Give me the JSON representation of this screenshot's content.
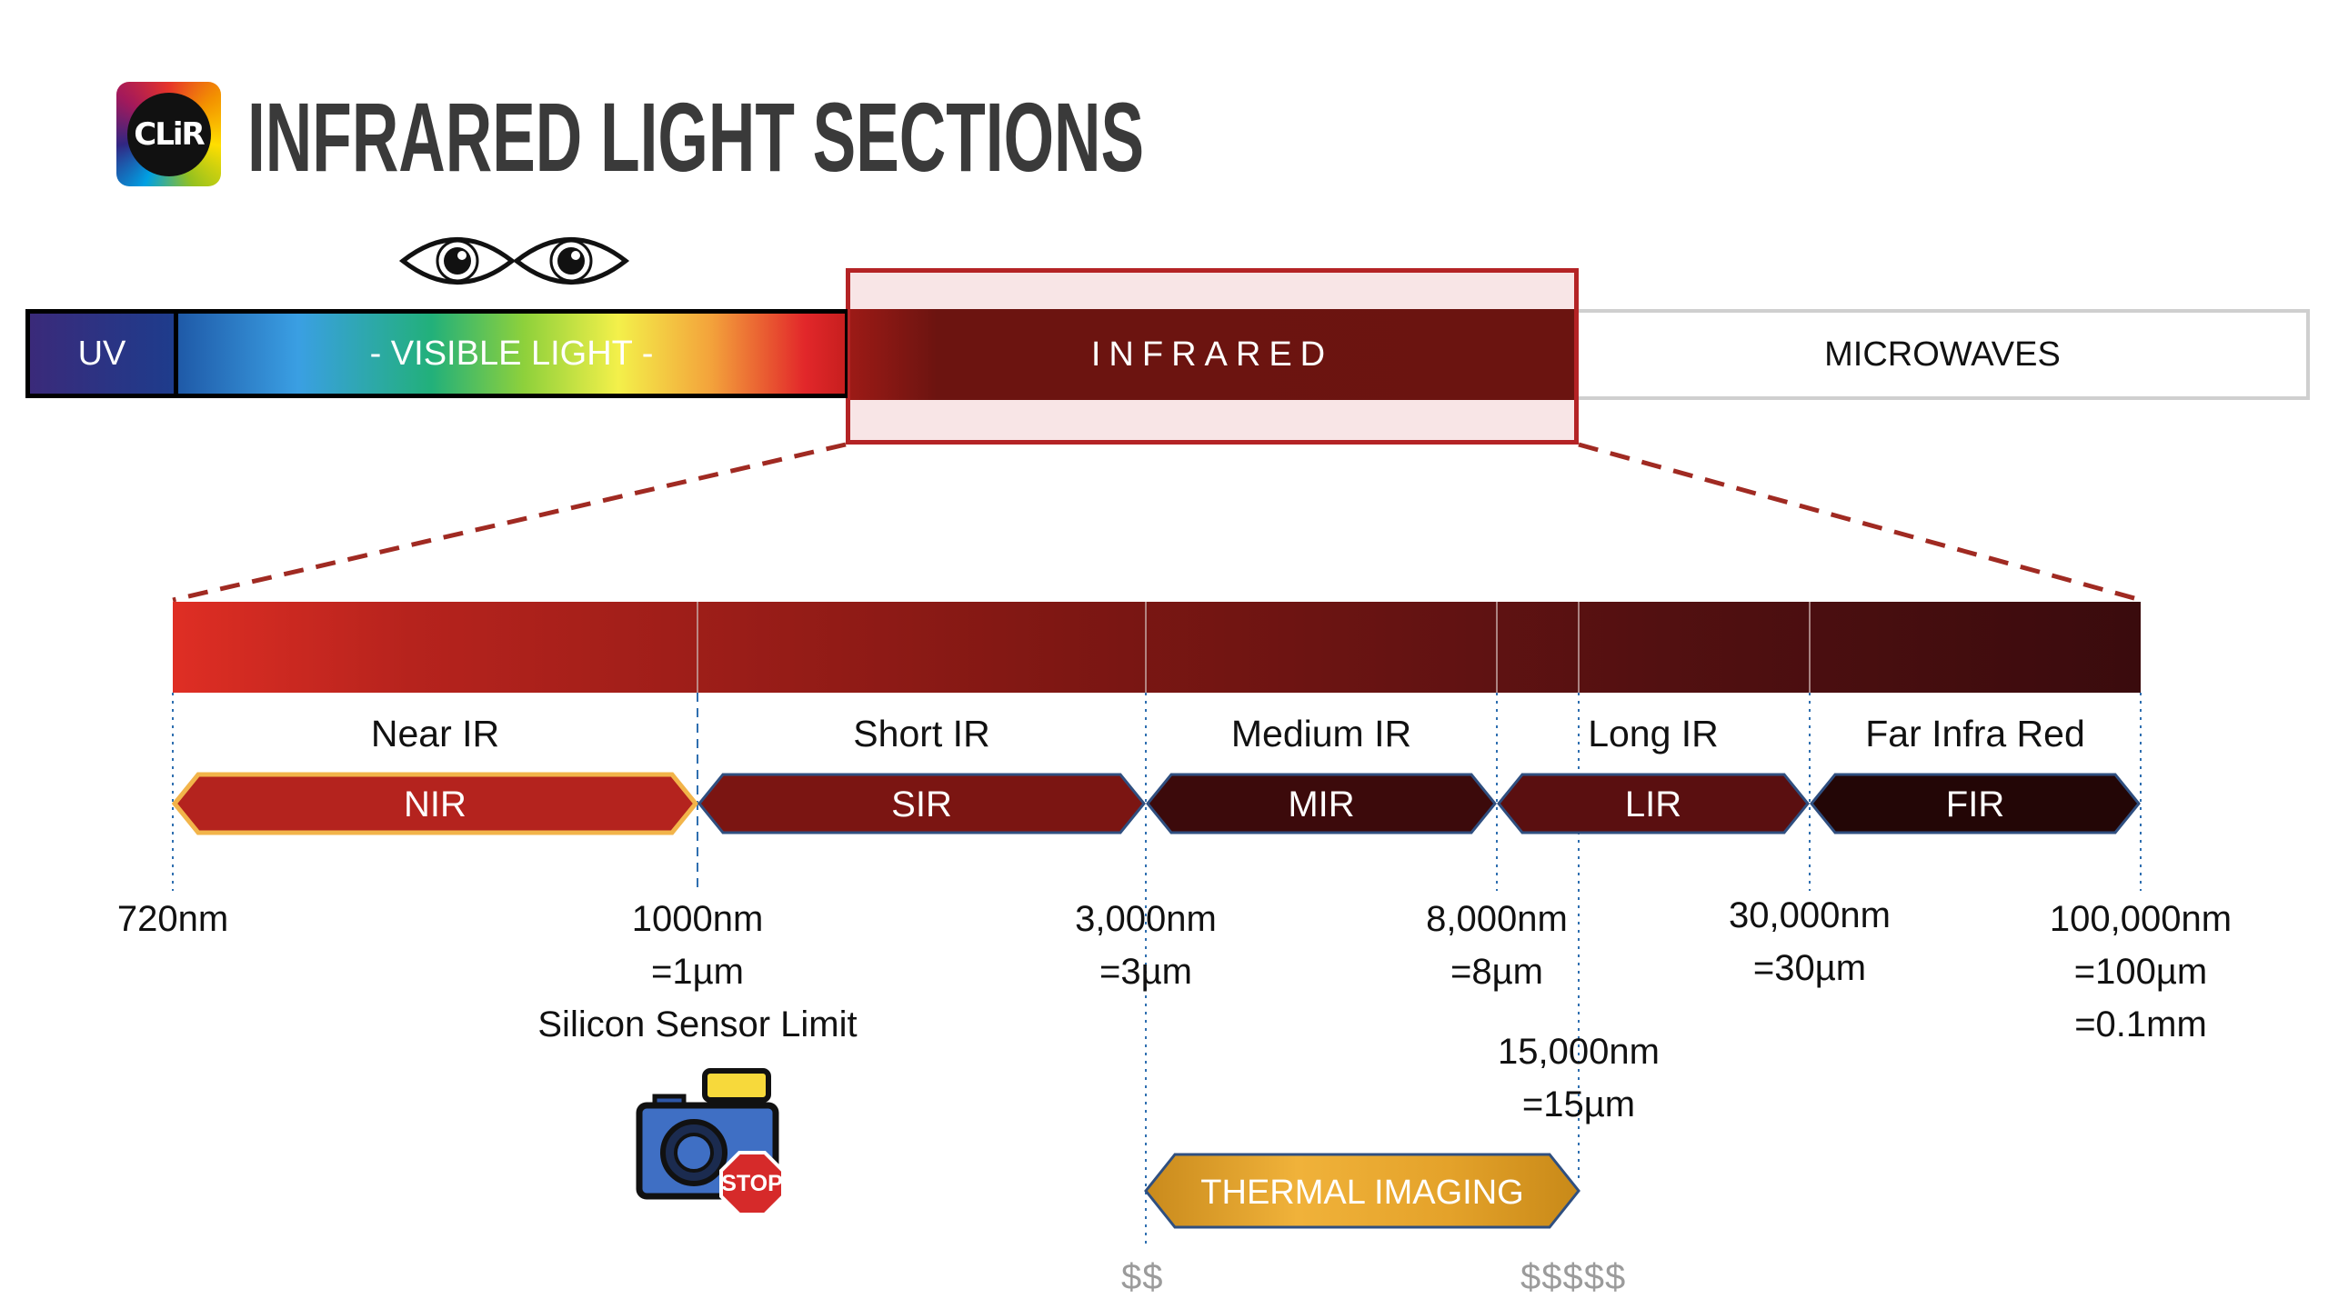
{
  "header": {
    "logo_text": "CLiR",
    "title": "INFRARED LIGHT SECTIONS"
  },
  "spectrum": {
    "uv": "UV",
    "visible": "- VISIBLE LIGHT -",
    "infrared": "INFRARED",
    "microwaves": "MICROWAVES"
  },
  "ir_bands": [
    {
      "name": "Near IR",
      "abbr": "NIR",
      "from": "720nm",
      "to": "1000nm",
      "color": "#b4231e",
      "outline": "#f2b44a"
    },
    {
      "name": "Short IR",
      "abbr": "SIR",
      "from": "1000nm",
      "to": "3,000nm",
      "color": "#7b1512",
      "outline": "#2f4f80"
    },
    {
      "name": "Medium IR",
      "abbr": "MIR",
      "from": "3,000nm",
      "to": "8,000nm",
      "color": "#3c0a0b",
      "outline": "#2f4f80"
    },
    {
      "name": "Long IR",
      "abbr": "LIR",
      "from": "8,000nm",
      "to": "30,000nm",
      "color": "#5a0f10",
      "outline": "#2f4f80"
    },
    {
      "name": "Far Infra Red",
      "abbr": "FIR",
      "from": "30,000nm",
      "to": "100,000nm",
      "color": "#230606",
      "outline": "#2f4f80"
    }
  ],
  "boundaries": [
    {
      "lines": [
        "720nm"
      ]
    },
    {
      "lines": [
        "1000nm",
        "=1µm",
        "Silicon Sensor Limit"
      ]
    },
    {
      "lines": [
        "3,000nm",
        "=3µm"
      ]
    },
    {
      "lines": [
        "8,000nm",
        "=8µm"
      ]
    },
    {
      "lines": [
        "15,000nm",
        "=15µm"
      ]
    },
    {
      "lines": [
        "30,000nm",
        "=30µm"
      ]
    },
    {
      "lines": [
        "100,000nm",
        "=100µm",
        "=0.1mm"
      ]
    }
  ],
  "thermal": {
    "label": "THERMAL IMAGING",
    "cost_low": "$$",
    "cost_high": "$$$$$",
    "color": "#e8a526"
  },
  "camera_stop": {
    "sign_text": "STOP"
  },
  "colors": {
    "infrared_frame": "#b42325",
    "dashed_zoom": "#a02a22",
    "guide_line": "#2f6fb0"
  }
}
